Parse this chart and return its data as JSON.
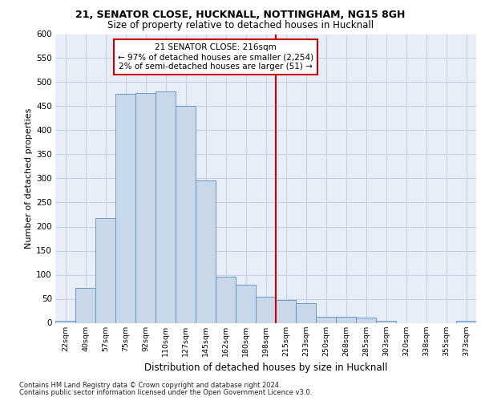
{
  "title1": "21, SENATOR CLOSE, HUCKNALL, NOTTINGHAM, NG15 8GH",
  "title2": "Size of property relative to detached houses in Hucknall",
  "xlabel": "Distribution of detached houses by size in Hucknall",
  "ylabel": "Number of detached properties",
  "bin_labels": [
    "22sqm",
    "40sqm",
    "57sqm",
    "75sqm",
    "92sqm",
    "110sqm",
    "127sqm",
    "145sqm",
    "162sqm",
    "180sqm",
    "198sqm",
    "215sqm",
    "233sqm",
    "250sqm",
    "268sqm",
    "285sqm",
    "303sqm",
    "320sqm",
    "338sqm",
    "355sqm",
    "373sqm"
  ],
  "bar_heights": [
    5,
    72,
    218,
    475,
    477,
    480,
    450,
    295,
    96,
    80,
    54,
    48,
    41,
    12,
    12,
    11,
    5,
    0,
    0,
    0,
    5
  ],
  "bar_color": "#c8d8e8",
  "bar_edge_color": "#5a8fc0",
  "grid_color": "#c8d4e4",
  "background_color": "#e8eef8",
  "vline_index": 11,
  "vline_color": "#cc0000",
  "annotation_text": "21 SENATOR CLOSE: 216sqm\n← 97% of detached houses are smaller (2,254)\n2% of semi-detached houses are larger (51) →",
  "annotation_box_color": "#cc0000",
  "footer1": "Contains HM Land Registry data © Crown copyright and database right 2024.",
  "footer2": "Contains public sector information licensed under the Open Government Licence v3.0.",
  "ylim": [
    0,
    600
  ],
  "yticks": [
    0,
    50,
    100,
    150,
    200,
    250,
    300,
    350,
    400,
    450,
    500,
    550,
    600
  ]
}
